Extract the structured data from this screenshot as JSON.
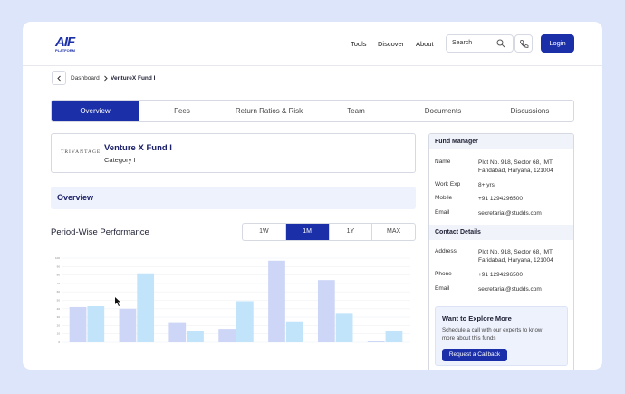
{
  "header": {
    "logo": "AIF",
    "logo_sub": "PLATFORM",
    "nav": [
      "Tools",
      "Discover",
      "About"
    ],
    "search": "Search",
    "login": "Login"
  },
  "breadcrumb": [
    "Dashboard",
    "VentureX Fund I"
  ],
  "tabs": [
    "Overview",
    "Fees",
    "Return Ratios & Risk",
    "Team",
    "Documents",
    "Discussions"
  ],
  "active_tab": 0,
  "fund": {
    "logo": "TRIVANTAGE",
    "name": "Venture X Fund I",
    "category": "Category I"
  },
  "section_title": "Overview",
  "performance": {
    "title": "Period-Wise Performance",
    "periods": [
      "1W",
      "1M",
      "1Y",
      "MAX"
    ],
    "active_period": 1
  },
  "chart_data": {
    "type": "bar",
    "categories": [
      null,
      null,
      null,
      null,
      null,
      null,
      null
    ],
    "series": [
      {
        "color": "#cdd6f6",
        "values": [
          42,
          40,
          23,
          16,
          97,
          74,
          2
        ]
      },
      {
        "color": "#c2e4fb",
        "values": [
          43,
          82,
          14,
          49,
          25,
          34,
          14
        ]
      }
    ],
    "ylim": [
      0,
      100
    ],
    "yticks": [
      0,
      10,
      20,
      30,
      40,
      50,
      60,
      70,
      80,
      90,
      100
    ],
    "grid": true
  },
  "fund_manager": {
    "title": "Fund Manager",
    "rows": [
      {
        "label": "Name",
        "value": [
          "Plot No. 918, Sector 68, IMT",
          "Faridabad, Haryana, 121004"
        ]
      },
      {
        "label": "Work Exp",
        "value": [
          "8+ yrs"
        ]
      },
      {
        "label": "Mobile",
        "value": [
          "+91 1294296500"
        ]
      },
      {
        "label": "Email",
        "value": [
          "secretarial@studds.com"
        ]
      }
    ]
  },
  "contact": {
    "title": "Contact Details",
    "rows": [
      {
        "label": "Address",
        "value": [
          "Plot No. 918, Sector 68, IMT",
          "Faridabad, Haryana, 121004"
        ]
      },
      {
        "label": "Phone",
        "value": [
          "+91 1294296500"
        ]
      },
      {
        "label": "Email",
        "value": [
          "secretarial@studds.com"
        ]
      }
    ]
  },
  "cta": {
    "title": "Want to Explore More",
    "text": [
      "Schedule a call with our experts to know",
      "more about this funds"
    ],
    "button": "Request a Callback"
  }
}
